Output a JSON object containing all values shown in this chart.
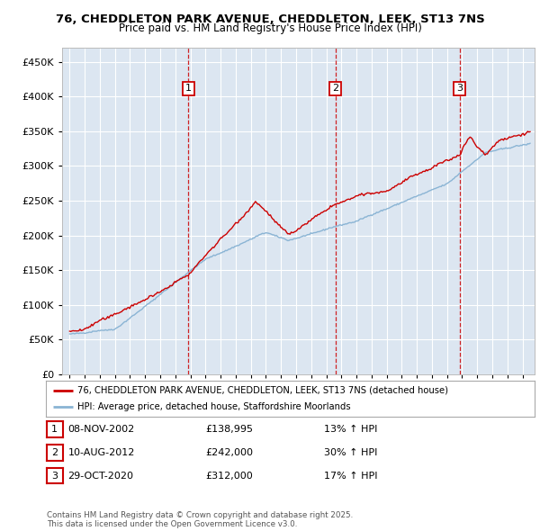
{
  "title_line1": "76, CHEDDLETON PARK AVENUE, CHEDDLETON, LEEK, ST13 7NS",
  "title_line2": "Price paid vs. HM Land Registry's House Price Index (HPI)",
  "background_color": "#dce6f1",
  "plot_bg_color": "#dce6f1",
  "red_color": "#cc0000",
  "blue_color": "#8ab4d4",
  "transactions": [
    {
      "date_x": 2002.86,
      "price": 138995,
      "label": "1"
    },
    {
      "date_x": 2012.61,
      "price": 242000,
      "label": "2"
    },
    {
      "date_x": 2020.83,
      "price": 312000,
      "label": "3"
    }
  ],
  "legend_entries": [
    "76, CHEDDLETON PARK AVENUE, CHEDDLETON, LEEK, ST13 7NS (detached house)",
    "HPI: Average price, detached house, Staffordshire Moorlands"
  ],
  "table_data": [
    [
      "1",
      "08-NOV-2002",
      "£138,995",
      "13% ↑ HPI"
    ],
    [
      "2",
      "10-AUG-2012",
      "£242,000",
      "30% ↑ HPI"
    ],
    [
      "3",
      "29-OCT-2020",
      "£312,000",
      "17% ↑ HPI"
    ]
  ],
  "footer": "Contains HM Land Registry data © Crown copyright and database right 2025.\nThis data is licensed under the Open Government Licence v3.0.",
  "ylim": [
    0,
    470000
  ],
  "xlim": [
    1994.5,
    2025.8
  ],
  "yticks": [
    0,
    50000,
    100000,
    150000,
    200000,
    250000,
    300000,
    350000,
    400000,
    450000
  ]
}
